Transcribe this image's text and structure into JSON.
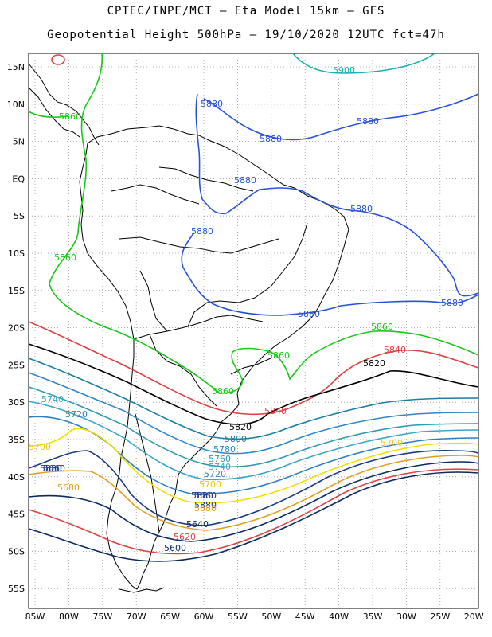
{
  "title_line1": "CPTEC/INPE/MCT –  Eta Model 15km – GFS",
  "title_line2": "Geopotential Height 500hPa – 19/10/2020 12UTC fct=47h",
  "lat_ticks": [
    "15N",
    "10N",
    "5N",
    "EQ",
    "5S",
    "10S",
    "15S",
    "20S",
    "25S",
    "30S",
    "35S",
    "40S",
    "45S",
    "50S",
    "55S"
  ],
  "lon_ticks": [
    "85W",
    "80W",
    "75W",
    "70W",
    "65W",
    "60W",
    "55W",
    "50W",
    "45W",
    "40W",
    "35W",
    "30W",
    "25W",
    "20W"
  ],
  "colors": {
    "c5900": "#17b2b2",
    "c5880": "#2a52d6",
    "c5860": "#18c818",
    "c5840": "#e04040",
    "c5820": "#000000",
    "c5800": "#1a7fa0",
    "c5780": "#2e86c8",
    "c5760": "#2e9ab0",
    "c5740": "#3aa6c8",
    "c5720": "#2f7fc0",
    "c5700": "#f0e000",
    "c5680": "#e0a020",
    "c5660": "#1a3a80",
    "c5640": "#0a2a60",
    "c5620": "#e04040",
    "c5600": "#0a2a60"
  },
  "contour_labels": [
    {
      "id": "l5900",
      "text": "5900"
    },
    {
      "id": "l5880a",
      "text": "5880"
    },
    {
      "id": "l5880b",
      "text": "5880"
    },
    {
      "id": "l5880c",
      "text": "5880"
    },
    {
      "id": "l5880d",
      "text": "5880"
    },
    {
      "id": "l5880e",
      "text": "5880"
    },
    {
      "id": "l5880f",
      "text": "5880"
    },
    {
      "id": "l5880g",
      "text": "5880"
    },
    {
      "id": "l5880h",
      "text": "5880"
    },
    {
      "id": "l5880i",
      "text": "5880"
    },
    {
      "id": "l5880j",
      "text": "5880"
    },
    {
      "id": "l5880k",
      "text": "5880"
    },
    {
      "id": "l5860a",
      "text": "5860"
    },
    {
      "id": "l5860b",
      "text": "5860"
    },
    {
      "id": "l5860c",
      "text": "5860"
    },
    {
      "id": "l5860d",
      "text": "5860"
    },
    {
      "id": "l5860e",
      "text": "5860"
    },
    {
      "id": "l5840a",
      "text": "5840"
    },
    {
      "id": "l5840b",
      "text": "5840"
    },
    {
      "id": "l5820a",
      "text": "5820"
    },
    {
      "id": "l5820b",
      "text": "5820"
    },
    {
      "id": "l5800",
      "text": "5800"
    },
    {
      "id": "l5780",
      "text": "5780"
    },
    {
      "id": "l5760",
      "text": "5760"
    },
    {
      "id": "l5740a",
      "text": "5740"
    },
    {
      "id": "l5740b",
      "text": "5740"
    },
    {
      "id": "l5720a",
      "text": "5720"
    },
    {
      "id": "l5720b",
      "text": "5720"
    },
    {
      "id": "l5700a",
      "text": "5700"
    },
    {
      "id": "l5700b",
      "text": "5700"
    },
    {
      "id": "l5700c",
      "text": "5700"
    },
    {
      "id": "l5680a",
      "text": "5680"
    },
    {
      "id": "l5660a",
      "text": "5660"
    },
    {
      "id": "l5660b",
      "text": "5660"
    },
    {
      "id": "l5680b",
      "text": "5680"
    },
    {
      "id": "l5640",
      "text": "5640"
    },
    {
      "id": "l5620",
      "text": "5620"
    },
    {
      "id": "l5600",
      "text": "5600"
    }
  ]
}
